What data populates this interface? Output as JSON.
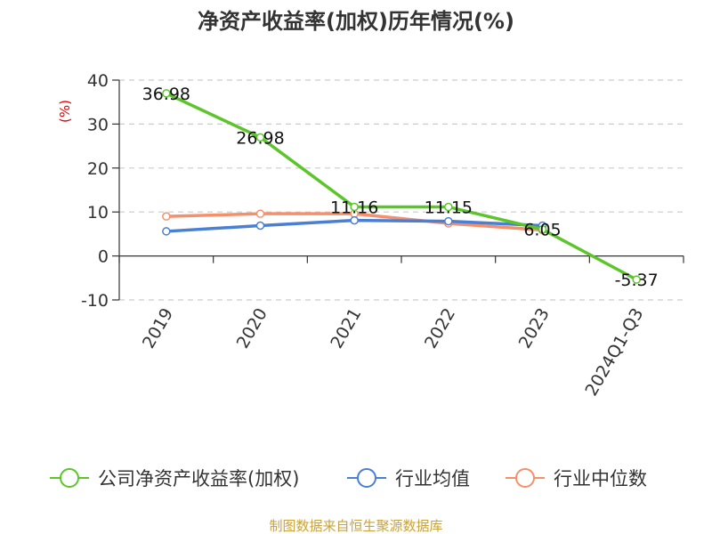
{
  "chart_data": {
    "type": "line",
    "title": "净资产收益率(加权)历年情况(%)",
    "unit_label": "(%)",
    "categories": [
      "2019",
      "2020",
      "2021",
      "2022",
      "2023",
      "2024Q1-Q3"
    ],
    "ylim": [
      -10,
      40
    ],
    "yticks": [
      -10,
      0,
      10,
      20,
      30,
      40
    ],
    "grid": true,
    "legend_position": "bottom",
    "series": [
      {
        "name": "公司净资产收益率(加权)",
        "color": "#5cc52a",
        "values": [
          36.98,
          26.98,
          11.16,
          11.15,
          6.05,
          -5.37
        ],
        "labels": [
          "36.98",
          "26.98",
          "11.16",
          "11.15",
          "6.05",
          "-5.37"
        ]
      },
      {
        "name": "行业均值",
        "color": "#4a7fd6",
        "values": [
          5.6,
          6.9,
          8.1,
          7.9,
          6.9,
          null
        ]
      },
      {
        "name": "行业中位数",
        "color": "#f5906b",
        "values": [
          9.0,
          9.6,
          9.6,
          7.4,
          5.9,
          null
        ]
      }
    ]
  },
  "source": "制图数据来自恒生聚源数据库"
}
